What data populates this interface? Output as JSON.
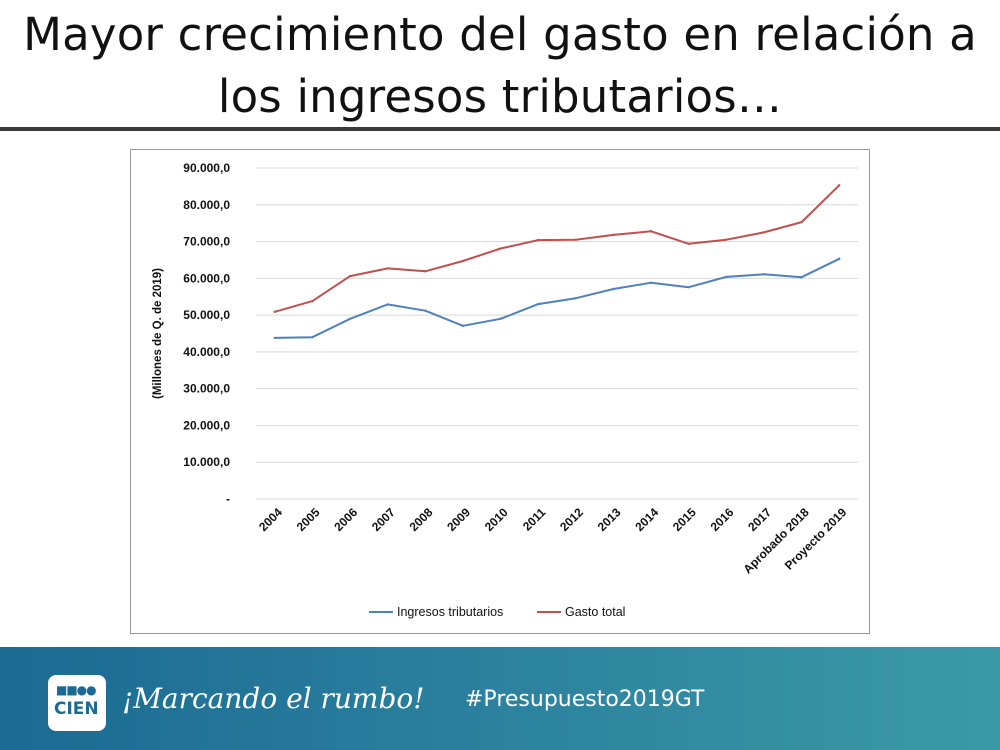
{
  "slide": {
    "title_line1": "Mayor crecimiento del gasto en relación a",
    "title_line2": "los ingresos tributarios…"
  },
  "footer": {
    "logo_text": "CIEN",
    "slogan": "¡Marcando el rumbo!",
    "hashtag": "#Presupuesto2019GT",
    "background_color": "#1b6a92"
  },
  "chart_data": {
    "type": "line",
    "ylabel": "(Millones de Q. de 2019)",
    "xlabel": "",
    "ylim": [
      0,
      90000
    ],
    "ytick_labels": [
      "-",
      "10.000,0",
      "20.000,0",
      "30.000,0",
      "40.000,0",
      "50.000,0",
      "60.000,0",
      "70.000,0",
      "80.000,0",
      "90.000,0"
    ],
    "ytick_values": [
      0,
      10000,
      20000,
      30000,
      40000,
      50000,
      60000,
      70000,
      80000,
      90000
    ],
    "grid": true,
    "legend_position": "bottom",
    "categories": [
      "2004",
      "2005",
      "2006",
      "2007",
      "2008",
      "2009",
      "2010",
      "2011",
      "2012",
      "2013",
      "2014",
      "2015",
      "2016",
      "2017",
      "Aprobado 2018",
      "Proyecto 2019"
    ],
    "series": [
      {
        "name": "Ingresos tributarios",
        "color": "#4f81bd",
        "values": [
          43800,
          44000,
          49000,
          52900,
          51200,
          47100,
          49000,
          53000,
          54600,
          57100,
          58800,
          57600,
          60400,
          61100,
          60300,
          65300
        ]
      },
      {
        "name": "Gasto total",
        "color": "#c0504d",
        "values": [
          50900,
          53800,
          60600,
          62700,
          61900,
          64700,
          68100,
          70400,
          70500,
          71800,
          72800,
          69400,
          70500,
          72500,
          75300,
          85300
        ]
      }
    ]
  }
}
